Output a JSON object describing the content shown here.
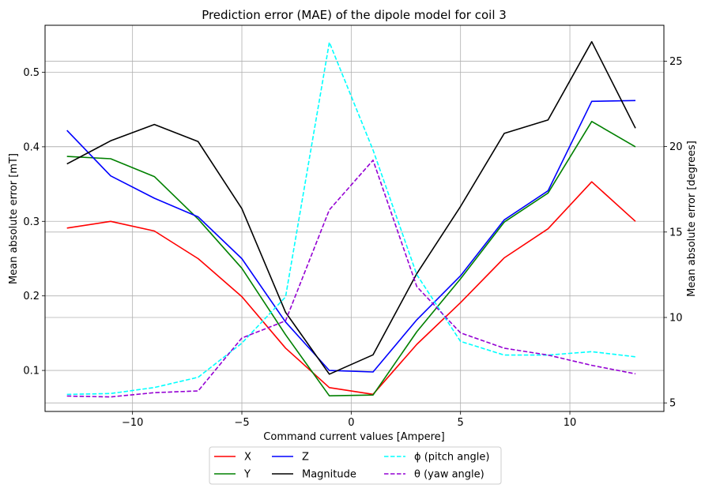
{
  "chart_data": {
    "type": "line",
    "title": "Prediction error (MAE) of the dipole model for coil 3",
    "xlabel": "Command current values [Ampere]",
    "ylabel_left": "Mean absolute error [mT]",
    "ylabel_right": "Mean absolute error [degrees]",
    "xlim": [
      -14,
      14.3
    ],
    "ylim_left": [
      0.045,
      0.563
    ],
    "ylim_right": [
      4.5,
      27.1
    ],
    "x_ticks": [
      -10,
      -5,
      0,
      5,
      10
    ],
    "x_tick_labels": [
      "−10",
      "−5",
      "0",
      "5",
      "10"
    ],
    "y_left_ticks": [
      0.1,
      0.2,
      0.3,
      0.4,
      0.5
    ],
    "y_left_tick_labels": [
      "0.1",
      "0.2",
      "0.3",
      "0.4",
      "0.5"
    ],
    "y_right_ticks": [
      5,
      10,
      15,
      20,
      25
    ],
    "y_right_tick_labels": [
      "5",
      "10",
      "15",
      "20",
      "25"
    ],
    "grid": true,
    "legend_position": "bottom-center-outside",
    "x": [
      -13,
      -11,
      -9,
      -7,
      -5,
      -3,
      -1,
      1,
      3,
      5,
      7,
      9,
      11,
      13
    ],
    "series": [
      {
        "name": "X",
        "axis": "left",
        "color": "#ff0000",
        "style": "solid",
        "values": [
          0.291,
          0.3,
          0.287,
          0.25,
          0.199,
          0.13,
          0.077,
          0.068,
          0.135,
          0.191,
          0.251,
          0.29,
          0.353,
          0.3
        ]
      },
      {
        "name": "Y",
        "axis": "left",
        "color": "#008000",
        "style": "solid",
        "values": [
          0.387,
          0.384,
          0.36,
          0.303,
          0.237,
          0.148,
          0.066,
          0.067,
          0.152,
          0.223,
          0.299,
          0.338,
          0.434,
          0.4
        ]
      },
      {
        "name": "Z",
        "axis": "left",
        "color": "#0000ff",
        "style": "solid",
        "values": [
          0.422,
          0.361,
          0.331,
          0.306,
          0.25,
          0.165,
          0.1,
          0.098,
          0.168,
          0.227,
          0.302,
          0.341,
          0.461,
          0.462
        ]
      },
      {
        "name": "Magnitude",
        "axis": "left",
        "color": "#000000",
        "style": "solid",
        "values": [
          0.377,
          0.408,
          0.43,
          0.407,
          0.317,
          0.178,
          0.095,
          0.121,
          0.23,
          0.32,
          0.418,
          0.436,
          0.541,
          0.425
        ]
      },
      {
        "name": "ϕ (pitch angle)",
        "axis": "right",
        "color": "#00ffff",
        "style": "dashed",
        "values": [
          5.5,
          5.55,
          5.9,
          6.5,
          8.5,
          11.2,
          26.1,
          19.8,
          12.5,
          8.6,
          7.8,
          7.8,
          8.0,
          7.7
        ]
      },
      {
        "name": "θ (yaw angle)",
        "axis": "right",
        "color": "#9400d3",
        "style": "dashed",
        "values": [
          5.4,
          5.35,
          5.6,
          5.7,
          8.8,
          9.8,
          16.3,
          19.2,
          11.8,
          9.1,
          8.2,
          7.8,
          7.2,
          6.7
        ]
      }
    ]
  }
}
